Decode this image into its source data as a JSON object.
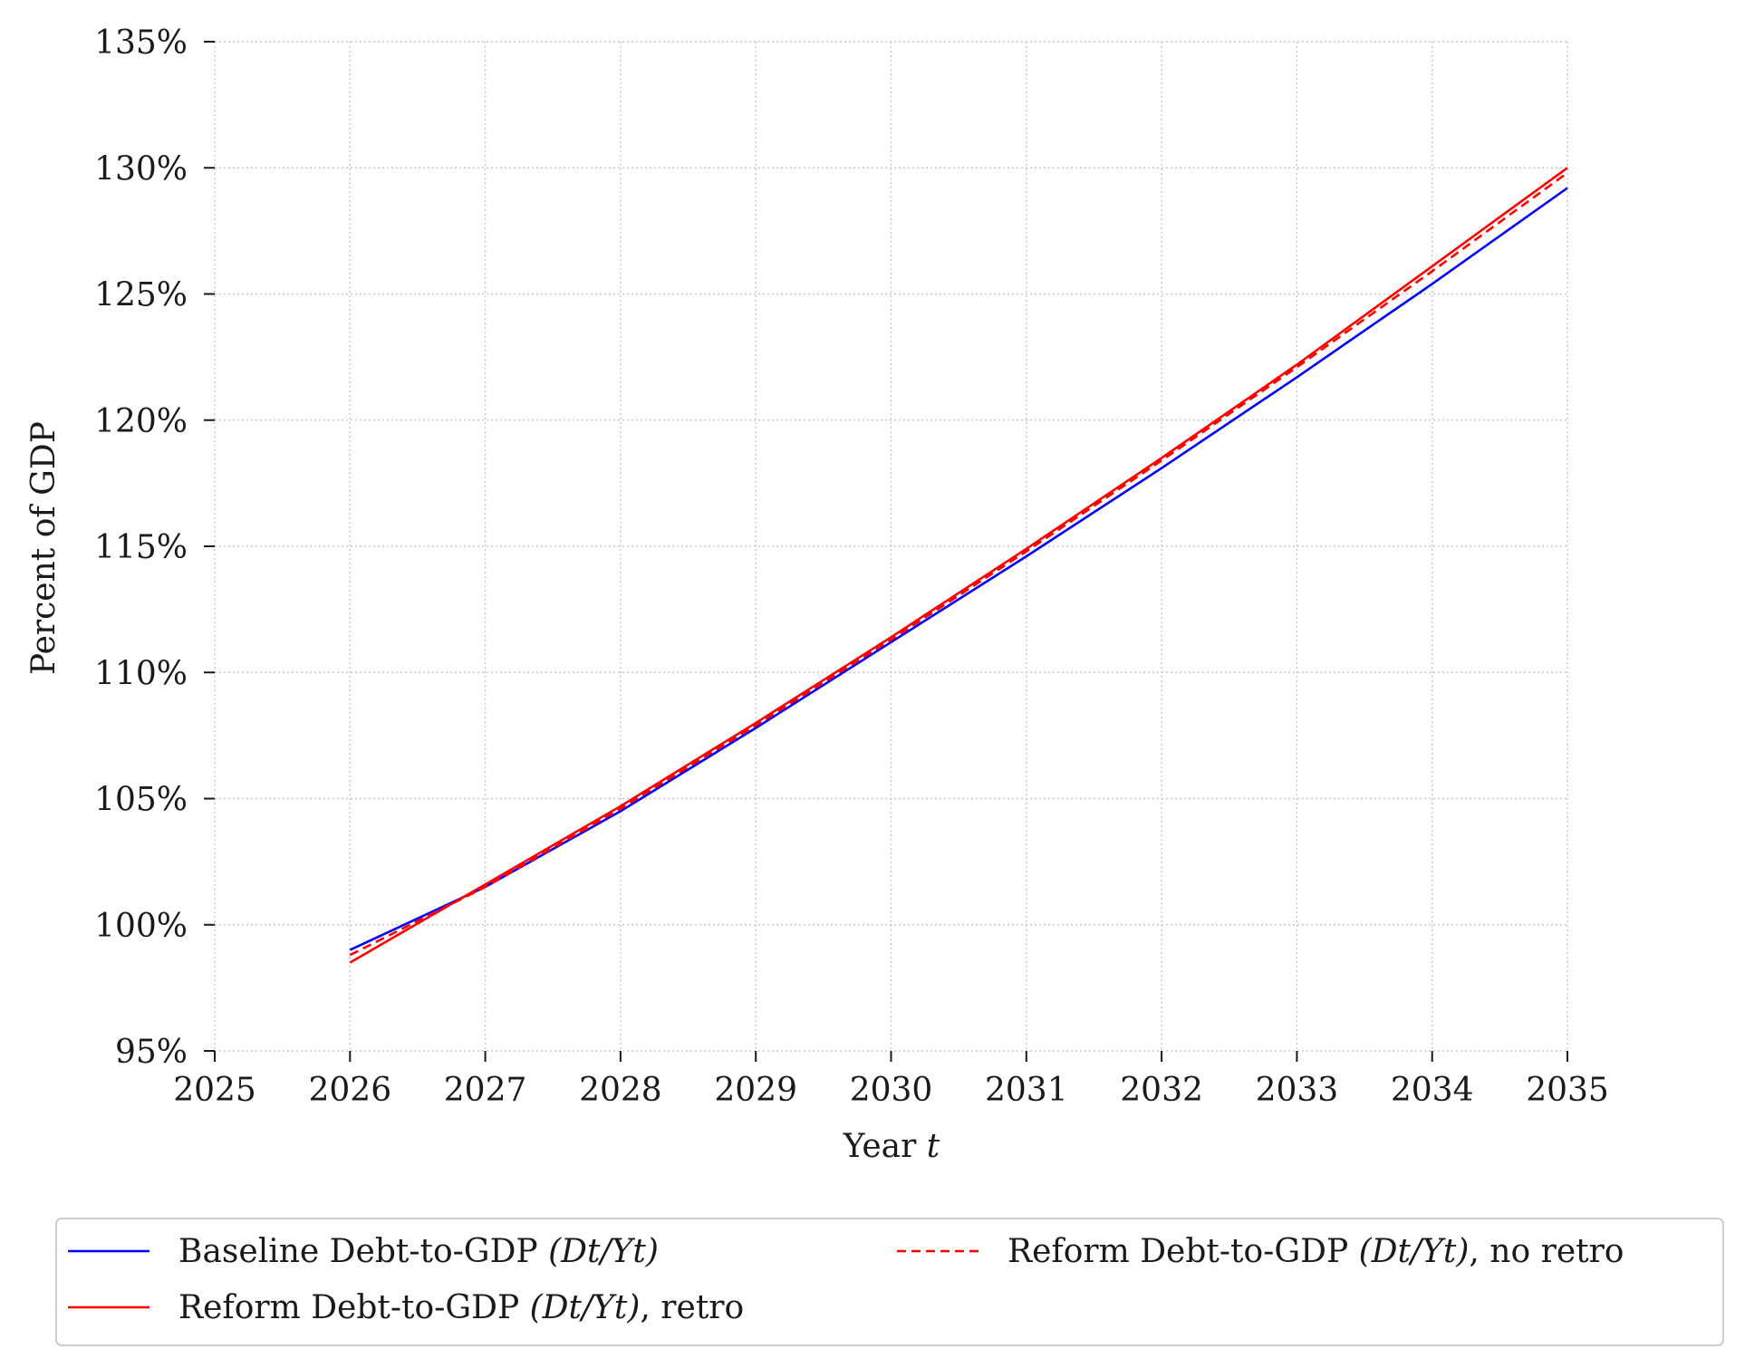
{
  "chart_data": {
    "type": "line",
    "title": "",
    "xlabel": "Year",
    "xlabel_italic": "t",
    "ylabel": "Percent of GDP",
    "xlim": [
      2025,
      2035
    ],
    "ylim": [
      95,
      135
    ],
    "x_ticks": [
      "2025",
      "2026",
      "2027",
      "2028",
      "2029",
      "2030",
      "2031",
      "2032",
      "2033",
      "2034",
      "2035"
    ],
    "y_ticks": [
      "95%",
      "100%",
      "105%",
      "110%",
      "115%",
      "120%",
      "125%",
      "130%",
      "135%"
    ],
    "grid": true,
    "legend_position": "below",
    "x": [
      2026,
      2027,
      2028,
      2029,
      2030,
      2031,
      2032,
      2033,
      2034,
      2035
    ],
    "series": [
      {
        "name": "Baseline Debt-to-GDP",
        "name_math": "(Dt/Yt)",
        "name_suffix": "",
        "color": "#0000ff",
        "style": "solid",
        "values": [
          99.0,
          101.5,
          104.5,
          107.8,
          111.2,
          114.6,
          118.1,
          121.7,
          125.4,
          129.2
        ]
      },
      {
        "name": "Reform Debt-to-GDP",
        "name_math": "(Dt/Yt)",
        "name_suffix": ", retro",
        "color": "#ff0000",
        "style": "solid",
        "values": [
          98.5,
          101.6,
          104.7,
          108.0,
          111.4,
          114.9,
          118.5,
          122.2,
          126.1,
          130.0
        ]
      },
      {
        "name": "Reform Debt-to-GDP",
        "name_math": "(Dt/Yt)",
        "name_suffix": ", no retro",
        "color": "#ff0000",
        "style": "dashed",
        "values": [
          98.8,
          101.5,
          104.6,
          107.9,
          111.3,
          114.8,
          118.4,
          122.1,
          125.9,
          129.8
        ]
      }
    ]
  }
}
